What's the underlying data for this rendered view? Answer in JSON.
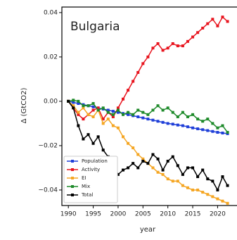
{
  "chart_data": {
    "type": "line",
    "title": "Bulgaria",
    "x_label": "year",
    "y_label": "Δ (GtCO2)",
    "x": [
      1990,
      1991,
      1992,
      1993,
      1994,
      1995,
      1996,
      1997,
      1998,
      1999,
      2000,
      2001,
      2002,
      2003,
      2004,
      2005,
      2006,
      2007,
      2008,
      2009,
      2010,
      2011,
      2012,
      2013,
      2014,
      2015,
      2016,
      2017,
      2018,
      2019,
      2020,
      2021,
      2022
    ],
    "series": [
      {
        "name": "Population",
        "color": "#1f3fd8",
        "values": [
          0,
          -0.0005,
          -0.001,
          -0.0015,
          -0.002,
          -0.0025,
          -0.003,
          -0.0035,
          -0.004,
          -0.0045,
          -0.005,
          -0.0055,
          -0.006,
          -0.0065,
          -0.007,
          -0.0075,
          -0.008,
          -0.0085,
          -0.009,
          -0.0095,
          -0.01,
          -0.0103,
          -0.0107,
          -0.011,
          -0.0115,
          -0.012,
          -0.0124,
          -0.0128,
          -0.0132,
          -0.0136,
          -0.014,
          -0.0143,
          -0.0146
        ]
      },
      {
        "name": "Activity",
        "color": "#e8141e",
        "values": [
          0,
          -0.003,
          -0.006,
          -0.008,
          -0.006,
          -0.004,
          -0.003,
          -0.008,
          -0.005,
          -0.007,
          -0.003,
          0.001,
          0.005,
          0.009,
          0.013,
          0.017,
          0.02,
          0.024,
          0.026,
          0.023,
          0.024,
          0.026,
          0.025,
          0.025,
          0.027,
          0.029,
          0.031,
          0.033,
          0.035,
          0.037,
          0.034,
          0.038,
          0.036
        ]
      },
      {
        "name": "EI",
        "color": "#f5a623",
        "values": [
          0,
          -0.002,
          -0.005,
          -0.003,
          -0.006,
          -0.007,
          -0.004,
          -0.01,
          -0.008,
          -0.011,
          -0.012,
          -0.016,
          -0.019,
          -0.021,
          -0.024,
          -0.026,
          -0.028,
          -0.03,
          -0.032,
          -0.033,
          -0.035,
          -0.036,
          -0.036,
          -0.038,
          -0.039,
          -0.04,
          -0.04,
          -0.041,
          -0.042,
          -0.043,
          -0.044,
          -0.045,
          -0.046
        ]
      },
      {
        "name": "Mix",
        "color": "#1e8a2a",
        "values": [
          0,
          0.0005,
          0,
          -0.002,
          -0.002,
          -0.001,
          -0.004,
          -0.003,
          -0.005,
          -0.006,
          -0.004,
          -0.006,
          -0.005,
          -0.006,
          -0.004,
          -0.005,
          -0.006,
          -0.004,
          -0.002,
          -0.004,
          -0.003,
          -0.005,
          -0.007,
          -0.005,
          -0.007,
          -0.006,
          -0.008,
          -0.009,
          -0.008,
          -0.01,
          -0.012,
          -0.011,
          -0.014
        ]
      },
      {
        "name": "Total",
        "color": "#000000",
        "values": [
          0,
          -0.003,
          -0.011,
          -0.017,
          -0.015,
          -0.019,
          -0.016,
          -0.022,
          -0.025,
          -0.028,
          -0.033,
          -0.031,
          -0.03,
          -0.028,
          -0.03,
          -0.027,
          -0.028,
          -0.024,
          -0.026,
          -0.031,
          -0.027,
          -0.025,
          -0.029,
          -0.033,
          -0.03,
          -0.03,
          -0.034,
          -0.031,
          -0.035,
          -0.036,
          -0.04,
          -0.034,
          -0.038
        ]
      }
    ],
    "xlim": [
      1988.7,
      2023.9
    ],
    "xticks": [
      1990,
      1995,
      2000,
      2005,
      2010,
      2015,
      2020
    ],
    "ylim": [
      -0.047,
      0.0425
    ],
    "yticks": [
      0.04,
      0.02,
      {
        "value": 0,
        "label": "0.00"
      },
      {
        "value": -0.02,
        "label": "−0.02"
      },
      {
        "value": -0.04,
        "label": "−0.04"
      }
    ],
    "legend": "lower left"
  }
}
